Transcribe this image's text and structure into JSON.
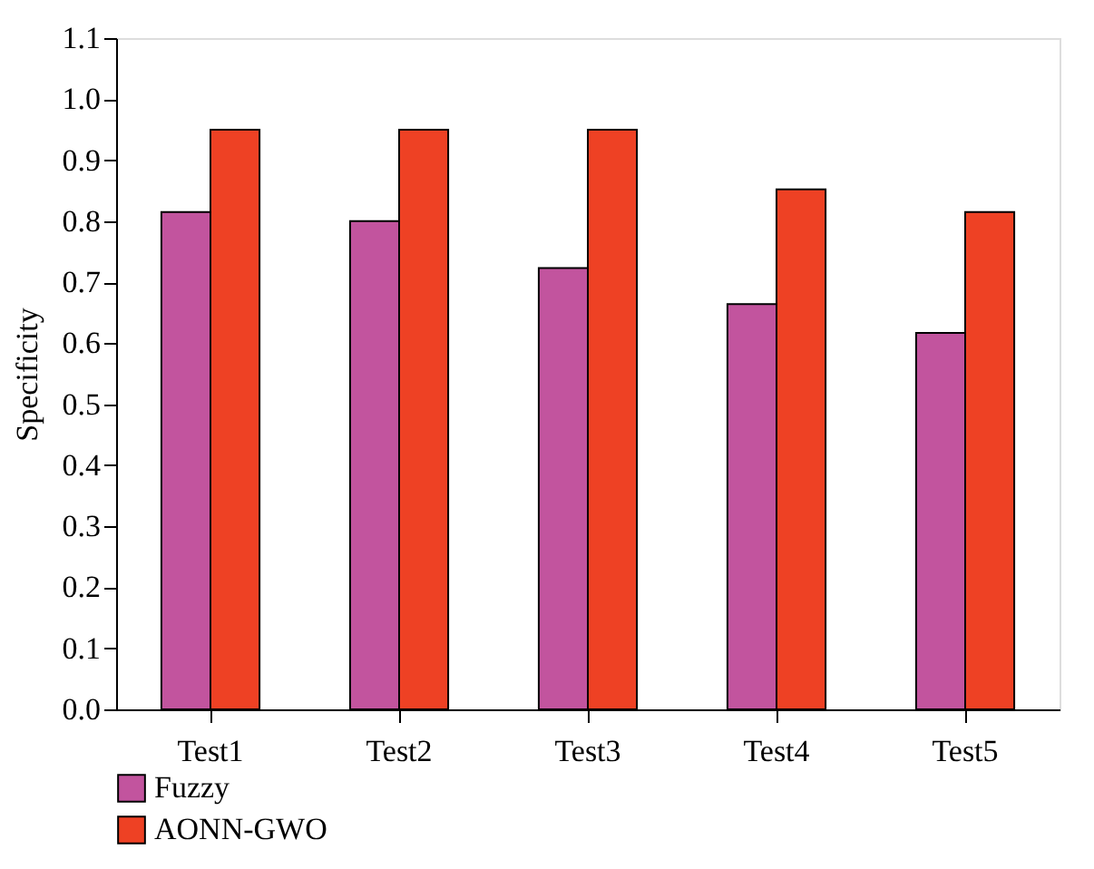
{
  "chart_data": {
    "type": "bar",
    "ylabel": "Specificity",
    "categories": [
      "Test1",
      "Test2",
      "Test3",
      "Test4",
      "Test5"
    ],
    "series": [
      {
        "name": "Fuzzy",
        "color": "#c2549e",
        "values": [
          0.815,
          0.8,
          0.723,
          0.664,
          0.617
        ]
      },
      {
        "name": "AONN-GWO",
        "color": "#ee4124",
        "values": [
          0.95,
          0.95,
          0.95,
          0.852,
          0.815
        ]
      }
    ],
    "ylim": [
      0,
      1.1
    ],
    "yticks": [
      {
        "value": 0,
        "label": "0.0"
      },
      {
        "value": 0.1,
        "label": "0.1"
      },
      {
        "value": 0.2,
        "label": "0.2"
      },
      {
        "value": 0.3,
        "label": "0.3"
      },
      {
        "value": 0.4,
        "label": "0.4"
      },
      {
        "value": 0.5,
        "label": "0.5"
      },
      {
        "value": 0.6,
        "label": "0.6"
      },
      {
        "value": 0.7,
        "label": "0.7"
      },
      {
        "value": 0.8,
        "label": "0.8"
      },
      {
        "value": 0.9,
        "label": "0.9"
      },
      {
        "value": 1.0,
        "label": "1.0"
      },
      {
        "value": 1.1,
        "label": "1.1"
      }
    ],
    "grid": false,
    "legend": "bottom left"
  }
}
